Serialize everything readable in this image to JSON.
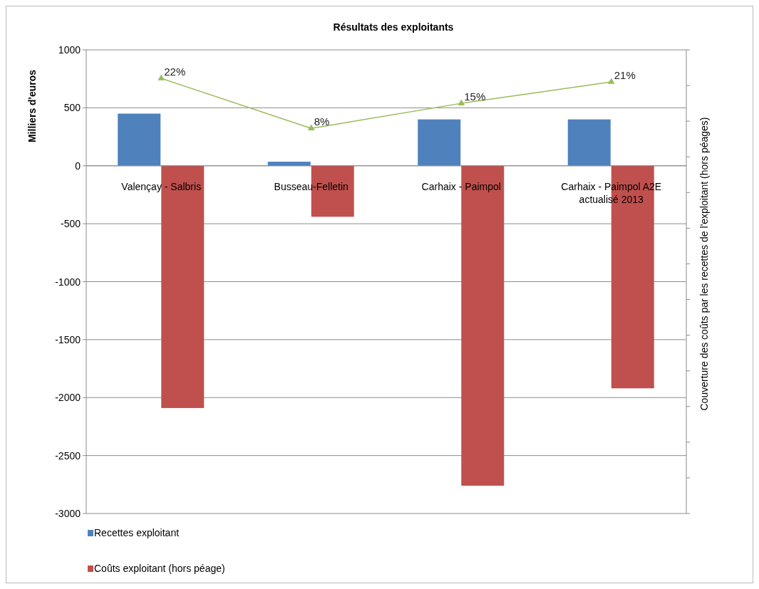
{
  "chart_data": {
    "type": "bar",
    "title": "Résultats des exploitants",
    "ylabel": "Milliers d'euros",
    "y2label": "Couverture des coûts par les recettes de l'exploitant (hors péages)",
    "categories": [
      "Valençay - Salbris",
      "Busseau-Felletin",
      "Carhaix - Paimpol",
      "Carhaix - Paimpol A2E\nactualisé 2013"
    ],
    "series": [
      {
        "name": "Recettes exploitant",
        "color": "#4f81bd",
        "values": [
          450,
          35,
          400,
          400
        ]
      },
      {
        "name": "Coûts exploitant (hors péage)",
        "color": "#c0504d",
        "values": [
          -2090,
          -440,
          -2760,
          -1920
        ]
      },
      {
        "type": "line",
        "axis": "y2",
        "color": "#9bbb59",
        "values": [
          22,
          8,
          15,
          21
        ],
        "value_labels": [
          "22%",
          "8%",
          "15%",
          "21%"
        ],
        "marker": "triangle"
      }
    ],
    "ylim": [
      -3000,
      1000
    ],
    "yticks": [
      -3000,
      -2500,
      -2000,
      -1500,
      -1000,
      -500,
      0,
      500,
      1000
    ],
    "y2lim": [
      -100,
      30
    ],
    "y2ticks": [
      {
        "value": -100,
        "label": null
      },
      {
        "value": -90,
        "label": null
      },
      {
        "value": -80,
        "label": null
      },
      {
        "value": -70,
        "label": null
      },
      {
        "value": -60,
        "label": null
      },
      {
        "value": -50,
        "label": null
      },
      {
        "value": -40,
        "label": null
      },
      {
        "value": -30,
        "label": null
      },
      {
        "value": -20,
        "label": null
      },
      {
        "value": -10,
        "label": null
      },
      {
        "value": 0,
        "label": null
      },
      {
        "value": 10,
        "label": null
      },
      {
        "value": 20,
        "label": null
      },
      {
        "value": 30,
        "label": null
      }
    ],
    "grid": "y",
    "legend": "bottom left"
  }
}
